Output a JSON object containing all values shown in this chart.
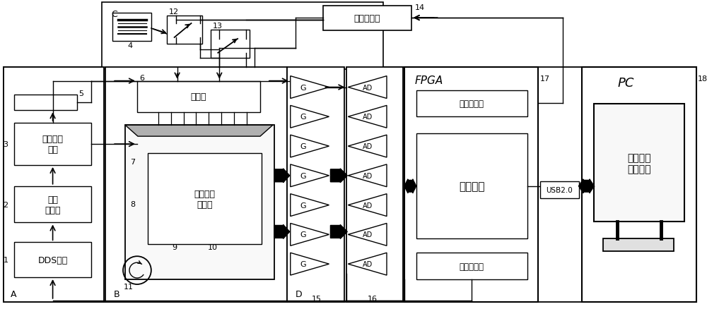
{
  "bg": "#ffffff",
  "lc": "#000000",
  "gray": "#888888",
  "lgray": "#d8d8d8",
  "labels": {
    "dds": "DDS电路",
    "lpf": "低通\n滤波器",
    "amp": "功率放大\n电路",
    "exciter": "激振器",
    "sensor": "微小位移\n传感器",
    "relay_drv": "继电器驱动",
    "relay_ctrl": "继电器控制",
    "data_acq": "数据采集",
    "sig_ctrl": "信号源控制",
    "usb": "USB2.0",
    "data_proc": "数据处理\n结果分析",
    "FPGA": "FPGA",
    "PC": "PC",
    "A": "A",
    "B": "B",
    "C": "C",
    "D": "D",
    "G": "G",
    "AD": "AD",
    "n1": "1",
    "n2": "2",
    "n3": "3",
    "n4": "4",
    "n5": "5",
    "n6": "6",
    "n7": "7",
    "n8": "8",
    "n9": "9",
    "n10": "10",
    "n11": "11",
    "n12": "12",
    "n13": "13",
    "n14": "14",
    "n15": "15",
    "n16": "16",
    "n17": "17",
    "n18": "18"
  }
}
